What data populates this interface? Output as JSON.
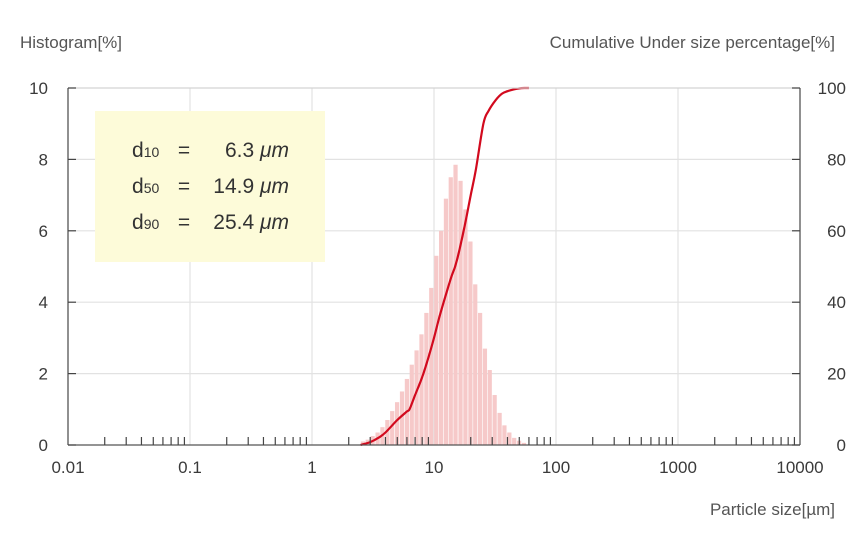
{
  "chart_data": {
    "type": "bar",
    "left_axis_label": "Histogram[%]",
    "right_axis_label": "Cumulative Under size percentage[%]",
    "xlabel": "Particle size[µm]",
    "x_scale": "log",
    "xlim": [
      0.01,
      10000
    ],
    "ylim_left": [
      0,
      10
    ],
    "ylim_right": [
      0,
      100
    ],
    "x_tick_labels": [
      "0.01",
      "0.1",
      "1",
      "10",
      "100",
      "1000",
      "10000"
    ],
    "y_left_tick_labels": [
      "0",
      "2",
      "4",
      "6",
      "8",
      "10"
    ],
    "y_right_tick_labels": [
      "0",
      "20",
      "40",
      "60",
      "80",
      "100"
    ],
    "grid": true,
    "histogram": {
      "name": "Histogram",
      "color": "#f6c9c9",
      "x": [
        2.63,
        2.88,
        3.16,
        3.47,
        3.8,
        4.17,
        4.57,
        5.01,
        5.5,
        6.03,
        6.61,
        7.24,
        7.94,
        8.71,
        9.55,
        10.5,
        11.5,
        12.6,
        13.8,
        15.1,
        16.6,
        18.2,
        20.0,
        21.9,
        24.0,
        26.3,
        28.8,
        31.6,
        34.7,
        38.0,
        41.7,
        45.7,
        50.1,
        55.0
      ],
      "values": [
        0.1,
        0.15,
        0.25,
        0.35,
        0.5,
        0.7,
        0.95,
        1.2,
        1.5,
        1.85,
        2.25,
        2.65,
        3.1,
        3.7,
        4.4,
        5.3,
        6.0,
        6.9,
        7.5,
        7.85,
        7.4,
        6.6,
        5.7,
        4.5,
        3.7,
        2.7,
        2.1,
        1.4,
        0.9,
        0.55,
        0.35,
        0.2,
        0.12,
        0.06
      ]
    },
    "cumulative": {
      "name": "Cumulative",
      "color": "#d20a1e",
      "x": [
        2.5,
        3,
        3.5,
        4,
        5,
        6,
        6.3,
        7,
        8,
        9,
        10,
        11,
        12,
        13,
        14,
        14.9,
        16,
        18,
        20,
        22,
        25.4,
        28,
        32,
        36,
        40,
        45,
        50,
        55,
        60
      ],
      "values": [
        0,
        0.8,
        2,
        3.5,
        7,
        9.4,
        10,
        14,
        19,
        24.5,
        30,
        35.5,
        40,
        44,
        47.5,
        50,
        54,
        62,
        70,
        77,
        90,
        93.6,
        96.6,
        98.4,
        99.1,
        99.6,
        99.9,
        100,
        100
      ]
    },
    "stats": [
      {
        "label": "d",
        "sub": "10",
        "eq": "=",
        "value": "6.3",
        "unit": "μm"
      },
      {
        "label": "d",
        "sub": "50",
        "eq": "=",
        "value": "14.9",
        "unit": "μm"
      },
      {
        "label": "d",
        "sub": "90",
        "eq": "=",
        "value": "25.4",
        "unit": "μm"
      }
    ],
    "stats_box_color": "#fdfbd9"
  }
}
